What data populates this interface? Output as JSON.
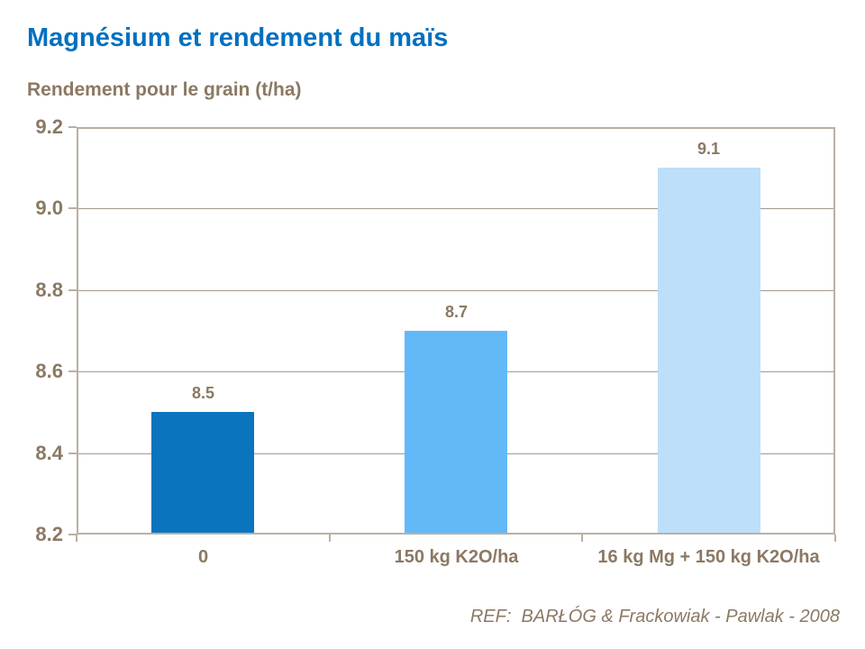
{
  "page": {
    "title": "Magnésium et rendement du maïs",
    "subtitle": "Rendement pour le grain (t/ha)",
    "reference": "REF:  BARŁÓG & Frackowiak - Pawlak - 2008"
  },
  "colors": {
    "title_blue": "#0070C0",
    "text_brown": "#8B7964",
    "frame": "#BAB0A3",
    "gridline": "#A39A8E",
    "bar_colors": [
      "#0B74BE",
      "#63B9F8",
      "#BDDFFA"
    ]
  },
  "chart_data": {
    "type": "bar",
    "title": "Magnésium et rendement du maïs",
    "xlabel": "",
    "ylabel": "Rendement pour le grain (t/ha)",
    "categories": [
      "0",
      "150 kg K2O/ha",
      "16 kg Mg + 150 kg K2O/ha"
    ],
    "values": [
      8.5,
      8.7,
      9.1
    ],
    "value_labels": [
      "8.5",
      "8.7",
      "9.1"
    ],
    "ylim": [
      8.2,
      9.2
    ],
    "yticks": [
      8.2,
      8.4,
      8.6,
      8.8,
      9.0,
      9.2
    ],
    "ytick_labels": [
      "8.2",
      "8.4",
      "8.6",
      "8.8",
      "9.0",
      "9.2"
    ],
    "grid": true,
    "legend": false,
    "annotation": "REF:  BARŁÓG & Frackowiak - Pawlak - 2008"
  }
}
